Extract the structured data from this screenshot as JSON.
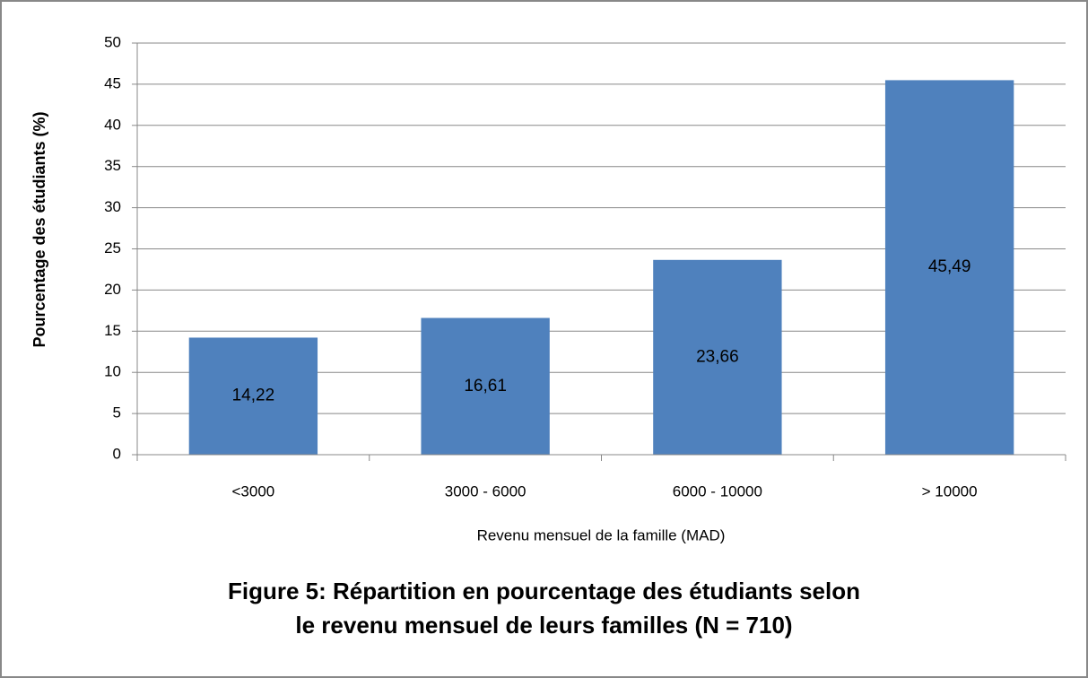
{
  "chart_data": {
    "type": "bar",
    "title": "Figure 5: Répartition en pourcentage des étudiants selon le revenu mensuel de leurs familles (N = 710)",
    "x_label": "Revenu mensuel de la famille (MAD)",
    "y_label": "Pourcentage des étudiants (%)",
    "categories": [
      "<3000",
      "3000 - 6000",
      "6000 - 10000",
      "> 10000"
    ],
    "values": [
      14.22,
      16.61,
      23.66,
      45.49
    ],
    "value_labels": [
      "14,22",
      "16,61",
      "23,66",
      "45,49"
    ],
    "color": "#4f81bd",
    "ylim": [
      0,
      50
    ],
    "yticks": [
      0,
      5,
      10,
      15,
      20,
      25,
      30,
      35,
      40,
      45,
      50
    ],
    "grid": true
  }
}
